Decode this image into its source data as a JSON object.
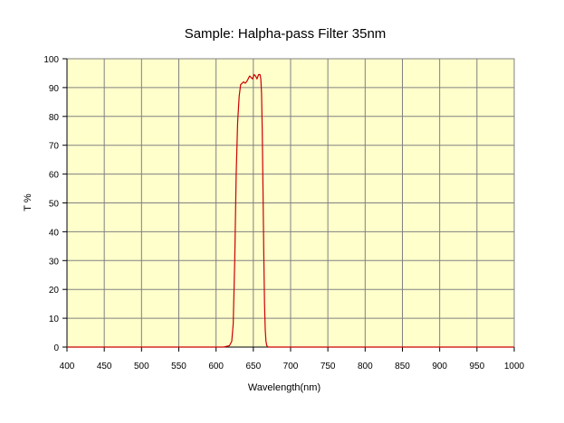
{
  "chart_data": {
    "type": "line",
    "title": "Sample: Halpha-pass Filter  35nm",
    "xlabel": "Wavelength(nm)",
    "ylabel": "T %",
    "xlim": [
      400,
      1000
    ],
    "ylim": [
      0,
      100
    ],
    "x_ticks": [
      400,
      450,
      500,
      550,
      600,
      650,
      700,
      750,
      800,
      850,
      900,
      950,
      1000
    ],
    "y_ticks": [
      0,
      10,
      20,
      30,
      40,
      50,
      60,
      70,
      80,
      90,
      100
    ],
    "x_tick_labels": [
      "400",
      "450",
      "500",
      "550",
      "600",
      "650",
      "700",
      "750",
      "800",
      "850",
      "900",
      "950",
      "1000"
    ],
    "y_tick_labels": [
      "0",
      "10",
      "20",
      "30",
      "40",
      "50",
      "60",
      "70",
      "80",
      "90",
      "100"
    ],
    "grid": true,
    "legend": "none",
    "colors": {
      "plot_background": "#FFFFCC",
      "grid": "#808080",
      "series": "#CC0000"
    },
    "series": [
      {
        "x": [
          400,
          610,
          618,
          621,
          623,
          625,
          627,
          629,
          631,
          633,
          635,
          637,
          639,
          641,
          643,
          645,
          647,
          649,
          651,
          653,
          655,
          657,
          659,
          660,
          661,
          662,
          663,
          664,
          665,
          666,
          667,
          668,
          670,
          675,
          1000
        ],
        "values": [
          0,
          0,
          0.5,
          2,
          8,
          30,
          60,
          78,
          87,
          91,
          91.5,
          92,
          91.5,
          92,
          93,
          94,
          93.5,
          93,
          94.5,
          94,
          93,
          94.5,
          94.5,
          93,
          88,
          75,
          55,
          32,
          15,
          6,
          2,
          0.5,
          0,
          0,
          0
        ]
      }
    ]
  }
}
